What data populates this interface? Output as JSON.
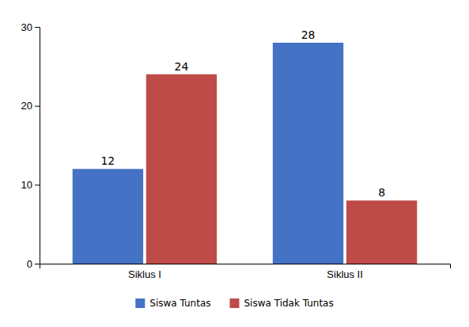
{
  "chart_data": {
    "type": "bar",
    "categories": [
      "Siklus I",
      "Siklus II"
    ],
    "series": [
      {
        "name": "Siswa Tuntas",
        "color": "#4472C4",
        "values": [
          12,
          28
        ]
      },
      {
        "name": "Siswa Tidak Tuntas",
        "color": "#BE4B48",
        "values": [
          24,
          8
        ]
      }
    ],
    "ylim": [
      0,
      30
    ],
    "yticks": [
      0,
      10,
      20,
      30
    ],
    "grid": false,
    "legend": "bottom",
    "data_labels": true
  }
}
